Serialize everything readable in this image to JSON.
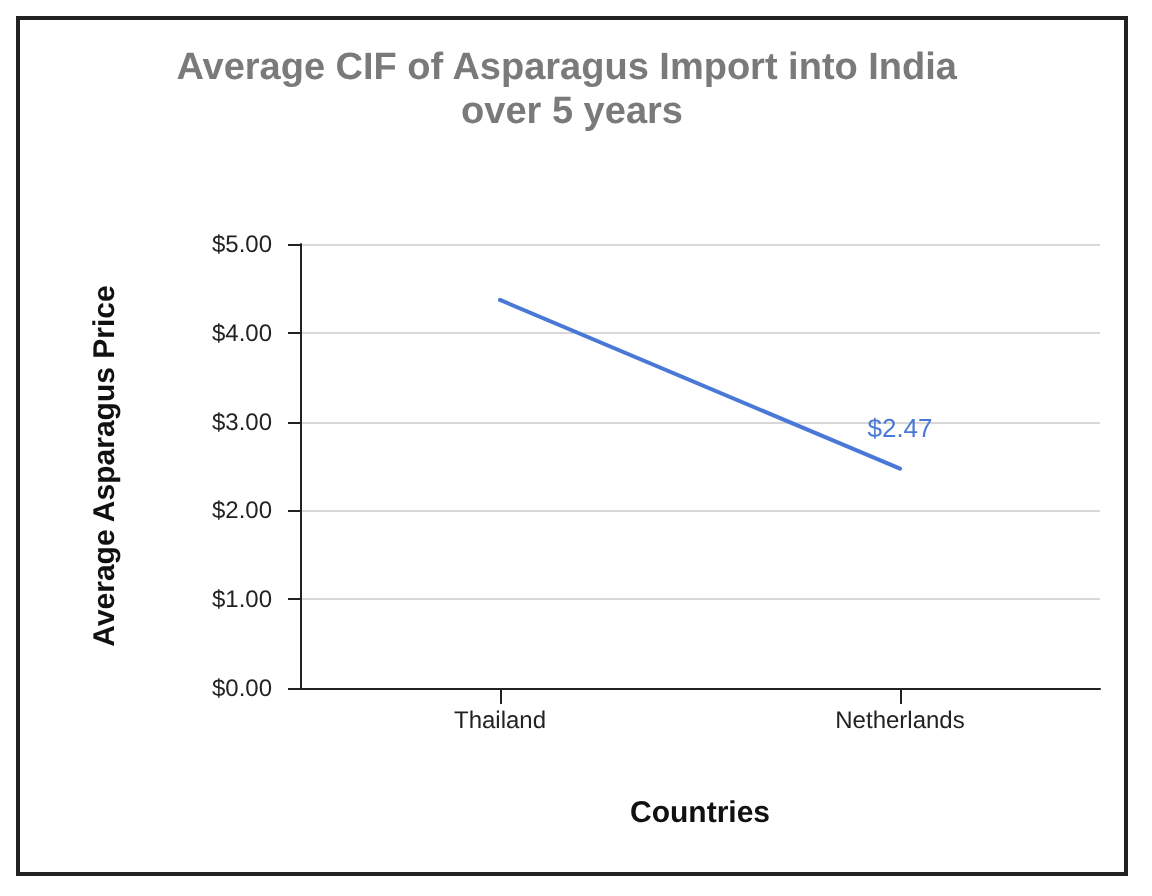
{
  "chart_data": {
    "type": "line",
    "title": "Average CIF of Asparagus Import into India over 5 years",
    "xlabel": "Countries",
    "ylabel": "Average Asparagus Price",
    "categories": [
      "Thailand",
      "Netherlands"
    ],
    "series": [
      {
        "color": "#4a78d6",
        "values": [
          4.37,
          2.47
        ],
        "value_labels": [
          null,
          "$2.47"
        ]
      }
    ],
    "ylim": [
      0,
      5
    ],
    "yticks": [
      {
        "value": 0,
        "label": "$0.00"
      },
      {
        "value": 1,
        "label": "$1.00"
      },
      {
        "value": 2,
        "label": "$2.00"
      },
      {
        "value": 3,
        "label": "$3.00"
      },
      {
        "value": 4,
        "label": "$4.00"
      },
      {
        "value": 5,
        "label": "$5.00"
      }
    ],
    "grid": "y",
    "marker": "none",
    "line_style": "solid"
  }
}
